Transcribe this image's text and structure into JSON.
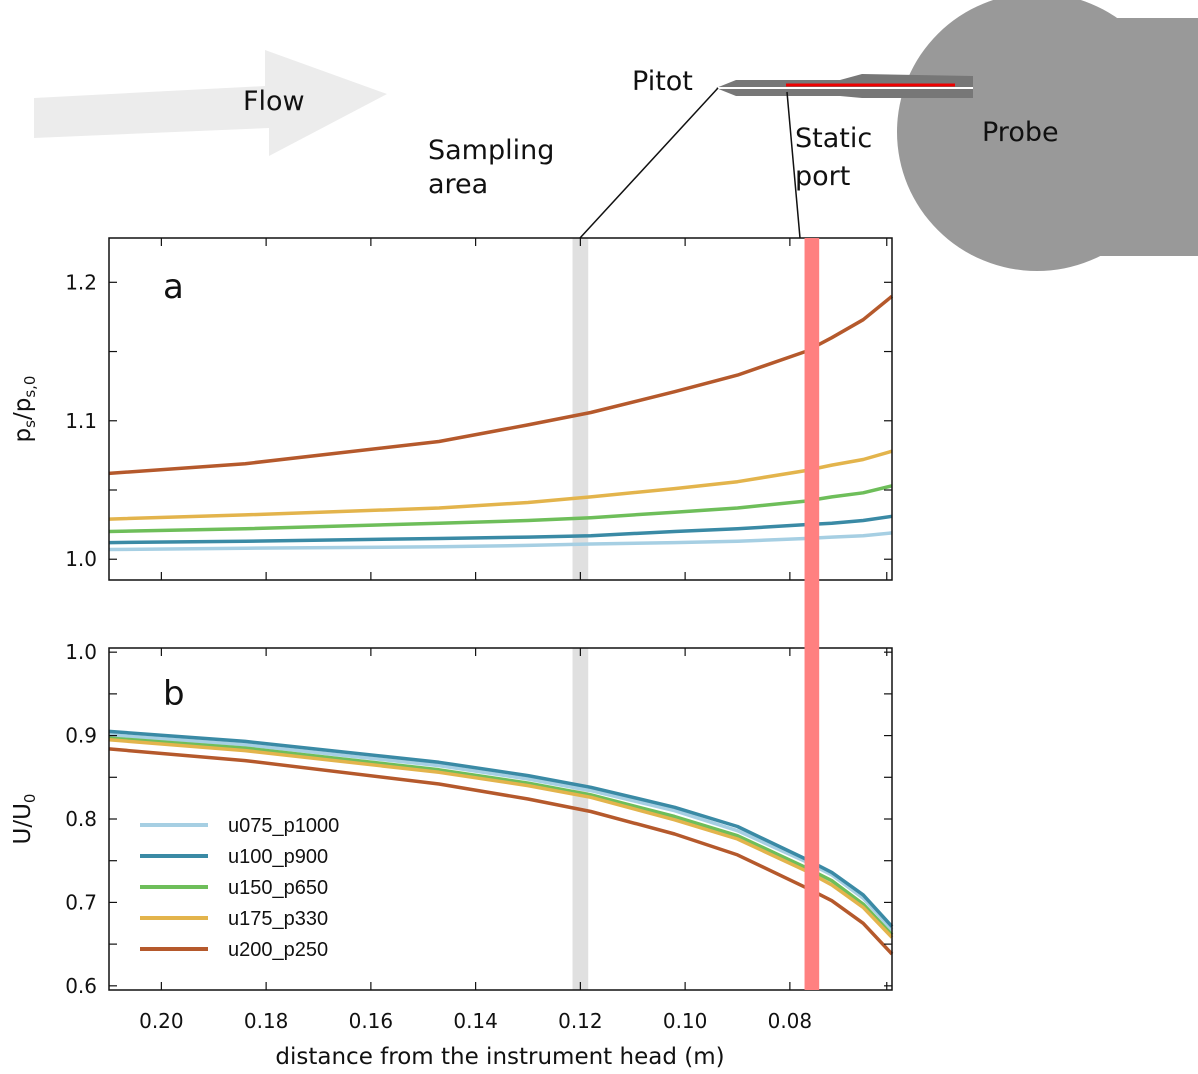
{
  "colors": {
    "sampling_band": "#e0e0e0",
    "static_band": "#ff8080",
    "flow_arrow": "#ececec",
    "probe_body": "#999999",
    "pitot_tube": "#777777",
    "static_label": "#ee0000",
    "sampling_label": "#b0b0b0"
  },
  "schematic": {
    "flow_label": "Flow",
    "pitot_label": "Pitot",
    "probe_label": "Probe",
    "static_port_label": [
      "Static",
      "port"
    ],
    "sampling_area_label": [
      "Sampling",
      "area"
    ]
  },
  "chart_data": [
    {
      "type": "line",
      "panel_label": "a",
      "ylabel_main": "p",
      "ylabel_sub1": "s",
      "ylabel_slash": "/p",
      "ylabel_sub2": "s,0",
      "xlim": [
        0.21,
        0.0605
      ],
      "ylim": [
        0.985,
        1.232
      ],
      "yticks": [
        1.0,
        1.1,
        1.2
      ],
      "ytick_labels": [
        "1.0",
        "1.1",
        "1.2"
      ],
      "x": [
        0.21,
        0.184,
        0.147,
        0.13,
        0.118,
        0.102,
        0.09,
        0.077,
        0.072,
        0.066,
        0.0605
      ],
      "series": [
        {
          "name": "u075_p1000",
          "color": "#a6cfe3",
          "values": [
            1.007,
            1.008,
            1.009,
            1.01,
            1.011,
            1.012,
            1.013,
            1.015,
            1.016,
            1.017,
            1.019
          ]
        },
        {
          "name": "u100_p900",
          "color": "#3a8aa5",
          "values": [
            1.012,
            1.013,
            1.015,
            1.016,
            1.017,
            1.02,
            1.022,
            1.025,
            1.026,
            1.028,
            1.031
          ]
        },
        {
          "name": "u150_p650",
          "color": "#6ebe5a",
          "values": [
            1.02,
            1.022,
            1.026,
            1.028,
            1.03,
            1.034,
            1.037,
            1.042,
            1.045,
            1.048,
            1.053
          ]
        },
        {
          "name": "u175_p330",
          "color": "#e3b44c",
          "values": [
            1.029,
            1.032,
            1.037,
            1.041,
            1.045,
            1.051,
            1.056,
            1.064,
            1.068,
            1.072,
            1.078
          ]
        },
        {
          "name": "u200_p250",
          "color": "#b5592c",
          "values": [
            1.062,
            1.069,
            1.085,
            1.097,
            1.106,
            1.121,
            1.133,
            1.15,
            1.16,
            1.173,
            1.19
          ]
        }
      ]
    },
    {
      "type": "line",
      "panel_label": "b",
      "ylabel_main": "U/U",
      "ylabel_sub": "0",
      "xlabel": "distance from the instrument head (m)",
      "xlim": [
        0.21,
        0.0605
      ],
      "ylim": [
        0.595,
        1.005
      ],
      "yticks": [
        0.6,
        0.7,
        0.8,
        0.9,
        1.0
      ],
      "ytick_labels": [
        "0.6",
        "0.7",
        "0.8",
        "0.9",
        "1.0"
      ],
      "xticks": [
        0.2,
        0.18,
        0.16,
        0.14,
        0.12,
        0.1,
        0.08
      ],
      "xtick_labels": [
        "0.20",
        "0.18",
        "0.16",
        "0.14",
        "0.12",
        "0.10",
        "0.08"
      ],
      "x": [
        0.21,
        0.184,
        0.147,
        0.13,
        0.118,
        0.102,
        0.09,
        0.077,
        0.072,
        0.066,
        0.0605
      ],
      "series": [
        {
          "name": "u075_p1000",
          "color": "#a6cfe3",
          "values": [
            0.901,
            0.889,
            0.864,
            0.848,
            0.834,
            0.81,
            0.786,
            0.749,
            0.733,
            0.705,
            0.667
          ]
        },
        {
          "name": "u100_p900",
          "color": "#3a8aa5",
          "values": [
            0.905,
            0.893,
            0.868,
            0.852,
            0.838,
            0.814,
            0.791,
            0.752,
            0.736,
            0.709,
            0.671
          ]
        },
        {
          "name": "u150_p650",
          "color": "#6ebe5a",
          "values": [
            0.897,
            0.885,
            0.859,
            0.843,
            0.829,
            0.803,
            0.78,
            0.742,
            0.726,
            0.698,
            0.661
          ]
        },
        {
          "name": "u175_p330",
          "color": "#e3b44c",
          "values": [
            0.895,
            0.882,
            0.856,
            0.84,
            0.826,
            0.799,
            0.776,
            0.738,
            0.721,
            0.694,
            0.658
          ]
        },
        {
          "name": "u200_p250",
          "color": "#b5592c",
          "values": [
            0.884,
            0.87,
            0.842,
            0.824,
            0.809,
            0.782,
            0.757,
            0.718,
            0.702,
            0.675,
            0.638
          ]
        }
      ],
      "legend_location": "lower-left"
    }
  ],
  "bands": {
    "sampling_x": [
      0.1215,
      0.1185
    ],
    "static_port_x": [
      0.0772,
      0.0744
    ]
  }
}
